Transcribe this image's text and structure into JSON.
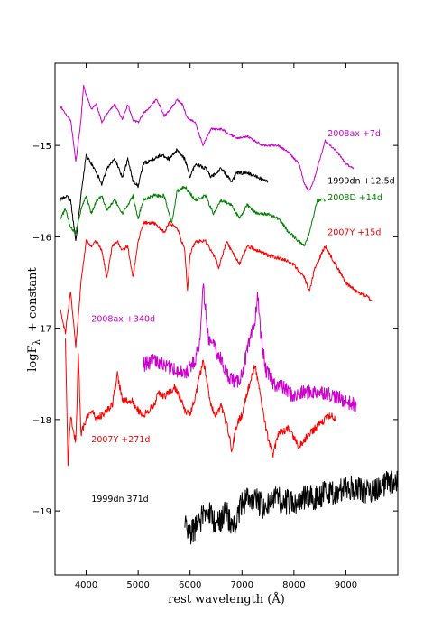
{
  "chart_data": {
    "type": "line",
    "xlabel": "rest wavelength (Å)",
    "ylabel": "logF",
    "ylabel_subscript": "λ",
    "ylabel_suffix": "+ constant",
    "xlim": [
      3400,
      10000
    ],
    "ylim": [
      -19.7,
      -14.1
    ],
    "x_ticks": [
      4000,
      5000,
      6000,
      7000,
      8000,
      9000
    ],
    "x_tick_labels": [
      "4000",
      "5000",
      "6000",
      "7000",
      "8000",
      "9000"
    ],
    "y_ticks": [
      -15,
      -16,
      -17,
      -18,
      -19
    ],
    "y_tick_labels": [
      "−15",
      "−16",
      "−17",
      "−18",
      "−19"
    ],
    "grid": false,
    "series": [
      {
        "name": "2008ax +7d",
        "color": "#cc00cc",
        "noise": 0.012,
        "label_at": [
          8650,
          -14.9
        ],
        "points": [
          [
            3500,
            -14.57
          ],
          [
            3600,
            -14.65
          ],
          [
            3700,
            -14.72
          ],
          [
            3800,
            -15.18
          ],
          [
            3900,
            -14.72
          ],
          [
            3950,
            -14.35
          ],
          [
            4000,
            -14.45
          ],
          [
            4100,
            -14.6
          ],
          [
            4200,
            -14.55
          ],
          [
            4300,
            -14.75
          ],
          [
            4400,
            -14.65
          ],
          [
            4550,
            -14.55
          ],
          [
            4700,
            -14.72
          ],
          [
            4800,
            -14.55
          ],
          [
            4900,
            -14.72
          ],
          [
            5000,
            -14.75
          ],
          [
            5100,
            -14.65
          ],
          [
            5200,
            -14.6
          ],
          [
            5350,
            -14.5
          ],
          [
            5450,
            -14.6
          ],
          [
            5500,
            -14.68
          ],
          [
            5600,
            -14.62
          ],
          [
            5750,
            -14.5
          ],
          [
            5850,
            -14.55
          ],
          [
            5950,
            -14.7
          ],
          [
            6100,
            -14.75
          ],
          [
            6250,
            -15.0
          ],
          [
            6400,
            -14.82
          ],
          [
            6600,
            -14.82
          ],
          [
            6900,
            -14.92
          ],
          [
            7100,
            -14.9
          ],
          [
            7400,
            -15.0
          ],
          [
            7700,
            -15.0
          ],
          [
            7900,
            -15.08
          ],
          [
            8100,
            -15.2
          ],
          [
            8200,
            -15.42
          ],
          [
            8300,
            -15.5
          ],
          [
            8400,
            -15.35
          ],
          [
            8600,
            -14.95
          ],
          [
            8800,
            -15.05
          ],
          [
            9000,
            -15.2
          ],
          [
            9150,
            -15.25
          ]
        ]
      },
      {
        "name": "1999dn +12.5d",
        "color": "#000000",
        "noise": 0.02,
        "label_at": [
          8650,
          -15.42
        ],
        "points": [
          [
            3500,
            -15.6
          ],
          [
            3600,
            -15.55
          ],
          [
            3700,
            -15.6
          ],
          [
            3800,
            -16.05
          ],
          [
            3900,
            -15.55
          ],
          [
            4000,
            -15.1
          ],
          [
            4100,
            -15.2
          ],
          [
            4200,
            -15.3
          ],
          [
            4300,
            -15.42
          ],
          [
            4400,
            -15.25
          ],
          [
            4550,
            -15.15
          ],
          [
            4700,
            -15.35
          ],
          [
            4800,
            -15.15
          ],
          [
            4900,
            -15.38
          ],
          [
            5000,
            -15.45
          ],
          [
            5100,
            -15.2
          ],
          [
            5300,
            -15.15
          ],
          [
            5450,
            -15.1
          ],
          [
            5600,
            -15.15
          ],
          [
            5750,
            -15.05
          ],
          [
            5900,
            -15.15
          ],
          [
            6000,
            -15.35
          ],
          [
            6100,
            -15.2
          ],
          [
            6300,
            -15.25
          ],
          [
            6400,
            -15.35
          ],
          [
            6600,
            -15.25
          ],
          [
            6800,
            -15.4
          ],
          [
            6900,
            -15.3
          ],
          [
            7100,
            -15.3
          ],
          [
            7300,
            -15.35
          ],
          [
            7500,
            -15.4
          ]
        ]
      },
      {
        "name": "2008D +14d",
        "color": "#008000",
        "noise": 0.018,
        "label_at": [
          8650,
          -15.6
        ],
        "points": [
          [
            3500,
            -15.8
          ],
          [
            3600,
            -15.7
          ],
          [
            3700,
            -15.9
          ],
          [
            3800,
            -15.95
          ],
          [
            3900,
            -15.7
          ],
          [
            4000,
            -15.55
          ],
          [
            4100,
            -15.75
          ],
          [
            4200,
            -15.6
          ],
          [
            4300,
            -15.55
          ],
          [
            4400,
            -15.7
          ],
          [
            4550,
            -15.6
          ],
          [
            4700,
            -15.75
          ],
          [
            4900,
            -15.55
          ],
          [
            5000,
            -15.8
          ],
          [
            5100,
            -15.6
          ],
          [
            5300,
            -15.55
          ],
          [
            5500,
            -15.55
          ],
          [
            5650,
            -15.85
          ],
          [
            5750,
            -15.5
          ],
          [
            5900,
            -15.45
          ],
          [
            6100,
            -15.6
          ],
          [
            6300,
            -15.55
          ],
          [
            6450,
            -15.75
          ],
          [
            6600,
            -15.6
          ],
          [
            6800,
            -15.65
          ],
          [
            6950,
            -15.8
          ],
          [
            7100,
            -15.65
          ],
          [
            7300,
            -15.75
          ],
          [
            7500,
            -15.75
          ],
          [
            7700,
            -15.8
          ],
          [
            7900,
            -15.95
          ],
          [
            8100,
            -16.05
          ],
          [
            8200,
            -16.1
          ],
          [
            8300,
            -15.95
          ],
          [
            8450,
            -15.6
          ],
          [
            8600,
            -15.6
          ]
        ]
      },
      {
        "name": "2007Y +15d",
        "color": "#ff0000",
        "noise": 0.02,
        "label_at": [
          8650,
          -15.98
        ],
        "points": [
          [
            3500,
            -16.8
          ],
          [
            3600,
            -17.05
          ],
          [
            3700,
            -16.6
          ],
          [
            3800,
            -17.2
          ],
          [
            3900,
            -16.5
          ],
          [
            4000,
            -16.05
          ],
          [
            4100,
            -16.1
          ],
          [
            4200,
            -16.05
          ],
          [
            4300,
            -16.15
          ],
          [
            4400,
            -16.45
          ],
          [
            4500,
            -16.1
          ],
          [
            4600,
            -16.05
          ],
          [
            4700,
            -16.15
          ],
          [
            4800,
            -16.1
          ],
          [
            4900,
            -16.45
          ],
          [
            5000,
            -16.05
          ],
          [
            5100,
            -15.85
          ],
          [
            5300,
            -15.85
          ],
          [
            5500,
            -15.95
          ],
          [
            5600,
            -15.85
          ],
          [
            5750,
            -15.9
          ],
          [
            5900,
            -16.15
          ],
          [
            5950,
            -16.6
          ],
          [
            6000,
            -16.2
          ],
          [
            6100,
            -16.05
          ],
          [
            6300,
            -16.05
          ],
          [
            6500,
            -16.25
          ],
          [
            6550,
            -16.35
          ],
          [
            6700,
            -16.05
          ],
          [
            6850,
            -16.2
          ],
          [
            6950,
            -16.3
          ],
          [
            7100,
            -16.1
          ],
          [
            7300,
            -16.15
          ],
          [
            7500,
            -16.2
          ],
          [
            7800,
            -16.25
          ],
          [
            8000,
            -16.3
          ],
          [
            8200,
            -16.45
          ],
          [
            8300,
            -16.6
          ],
          [
            8400,
            -16.35
          ],
          [
            8600,
            -16.1
          ],
          [
            8800,
            -16.3
          ],
          [
            9000,
            -16.5
          ],
          [
            9200,
            -16.6
          ],
          [
            9400,
            -16.65
          ],
          [
            9500,
            -16.7
          ]
        ]
      },
      {
        "name": "2008ax +340d",
        "color": "#cc00cc",
        "noise": 0.08,
        "label_at": [
          4100,
          -16.93
        ],
        "points": [
          [
            5100,
            -17.4
          ],
          [
            5300,
            -17.35
          ],
          [
            5500,
            -17.4
          ],
          [
            5700,
            -17.45
          ],
          [
            5900,
            -17.5
          ],
          [
            6100,
            -17.35
          ],
          [
            6200,
            -17.1
          ],
          [
            6250,
            -16.55
          ],
          [
            6300,
            -16.8
          ],
          [
            6350,
            -17.1
          ],
          [
            6500,
            -17.25
          ],
          [
            6600,
            -17.35
          ],
          [
            6700,
            -17.5
          ],
          [
            6800,
            -17.55
          ],
          [
            6900,
            -17.6
          ],
          [
            7000,
            -17.5
          ],
          [
            7100,
            -17.25
          ],
          [
            7250,
            -16.95
          ],
          [
            7300,
            -16.6
          ],
          [
            7350,
            -17.0
          ],
          [
            7450,
            -17.45
          ],
          [
            7600,
            -17.6
          ],
          [
            7800,
            -17.65
          ],
          [
            8000,
            -17.75
          ],
          [
            8200,
            -17.7
          ],
          [
            8400,
            -17.7
          ],
          [
            8600,
            -17.7
          ],
          [
            8800,
            -17.75
          ],
          [
            9000,
            -17.8
          ],
          [
            9200,
            -17.85
          ]
        ]
      },
      {
        "name": "2007Y +271d",
        "color": "#ff0000",
        "noise": 0.04,
        "label_at": [
          4100,
          -18.25
        ],
        "points": [
          [
            3600,
            -17.1
          ],
          [
            3650,
            -18.5
          ],
          [
            3700,
            -17.95
          ],
          [
            3800,
            -18.25
          ],
          [
            3850,
            -17.3
          ],
          [
            3900,
            -18.15
          ],
          [
            4000,
            -18.0
          ],
          [
            4100,
            -17.9
          ],
          [
            4200,
            -18.0
          ],
          [
            4300,
            -17.95
          ],
          [
            4400,
            -17.9
          ],
          [
            4500,
            -17.85
          ],
          [
            4600,
            -17.5
          ],
          [
            4700,
            -17.8
          ],
          [
            4800,
            -17.8
          ],
          [
            4900,
            -17.8
          ],
          [
            5000,
            -17.9
          ],
          [
            5100,
            -17.95
          ],
          [
            5300,
            -17.85
          ],
          [
            5400,
            -17.7
          ],
          [
            5500,
            -17.75
          ],
          [
            5700,
            -17.65
          ],
          [
            5800,
            -17.75
          ],
          [
            5900,
            -17.9
          ],
          [
            6000,
            -17.95
          ],
          [
            6100,
            -17.75
          ],
          [
            6250,
            -17.35
          ],
          [
            6300,
            -17.5
          ],
          [
            6400,
            -17.85
          ],
          [
            6500,
            -17.95
          ],
          [
            6600,
            -17.85
          ],
          [
            6750,
            -18.15
          ],
          [
            6800,
            -18.35
          ],
          [
            6900,
            -18.05
          ],
          [
            7000,
            -17.95
          ],
          [
            7100,
            -17.7
          ],
          [
            7250,
            -17.4
          ],
          [
            7300,
            -17.55
          ],
          [
            7400,
            -17.9
          ],
          [
            7500,
            -18.2
          ],
          [
            7600,
            -18.4
          ],
          [
            7700,
            -18.15
          ],
          [
            7900,
            -18.1
          ],
          [
            8100,
            -18.3
          ],
          [
            8300,
            -18.15
          ],
          [
            8500,
            -18.05
          ],
          [
            8700,
            -17.95
          ],
          [
            8800,
            -18.0
          ]
        ]
      },
      {
        "name": "1999dn 371d",
        "color": "#000000",
        "noise": 0.14,
        "label_at": [
          4100,
          -18.9
        ],
        "points": [
          [
            5900,
            -19.15
          ],
          [
            6000,
            -19.25
          ],
          [
            6100,
            -19.2
          ],
          [
            6200,
            -19.1
          ],
          [
            6300,
            -19.0
          ],
          [
            6400,
            -19.05
          ],
          [
            6500,
            -19.15
          ],
          [
            6600,
            -19.1
          ],
          [
            6700,
            -19.0
          ],
          [
            6800,
            -19.2
          ],
          [
            6900,
            -19.1
          ],
          [
            7000,
            -18.9
          ],
          [
            7200,
            -18.85
          ],
          [
            7400,
            -18.95
          ],
          [
            7600,
            -18.85
          ],
          [
            7800,
            -18.9
          ],
          [
            8000,
            -18.9
          ],
          [
            8200,
            -18.85
          ],
          [
            8400,
            -18.85
          ],
          [
            8600,
            -18.8
          ],
          [
            8800,
            -18.8
          ],
          [
            9000,
            -18.75
          ],
          [
            9200,
            -18.75
          ],
          [
            9400,
            -18.8
          ],
          [
            9600,
            -18.75
          ],
          [
            9800,
            -18.7
          ],
          [
            10000,
            -18.7
          ]
        ]
      }
    ]
  }
}
